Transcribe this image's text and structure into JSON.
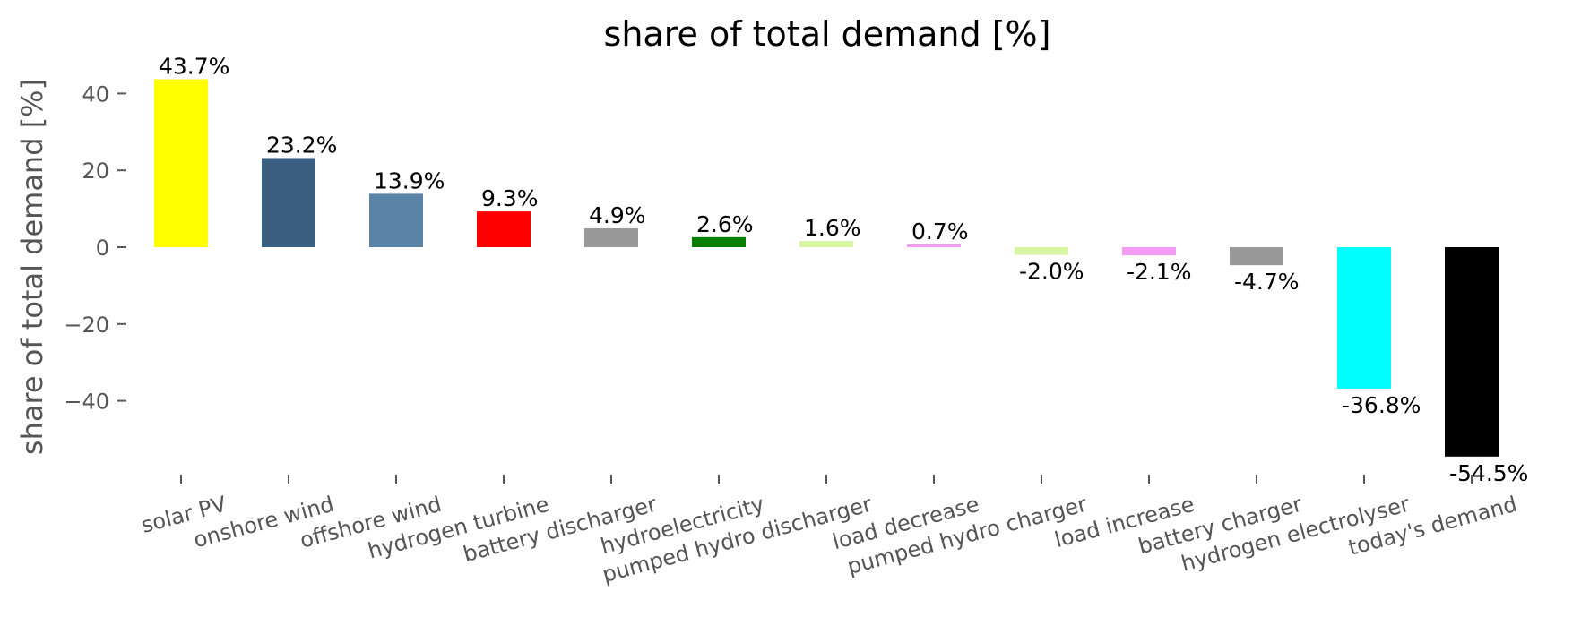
{
  "chart_data": {
    "type": "bar",
    "title": "share of total demand [%]",
    "ylabel": "share of total demand [%]",
    "xlabel": "",
    "ylim": [
      -60,
      46
    ],
    "yticks": [
      -40,
      -20,
      0,
      20,
      40
    ],
    "grid": false,
    "legend": "none",
    "categories": [
      "solar PV",
      "onshore wind",
      "offshore wind",
      "hydrogen turbine",
      "battery discharger",
      "hydroelectricity",
      "pumped hydro discharger",
      "load decrease",
      "pumped hydro charger",
      "load increase",
      "battery charger",
      "hydrogen electrolyser",
      "today's demand"
    ],
    "values": [
      43.7,
      23.2,
      13.9,
      9.3,
      4.9,
      2.6,
      1.6,
      0.7,
      -2.0,
      -2.1,
      -4.7,
      -36.8,
      -54.5
    ],
    "data_labels": [
      "43.7%",
      "23.2%",
      "13.9%",
      "9.3%",
      "4.9%",
      "2.6%",
      "1.6%",
      "0.7%",
      "-2.0%",
      "-2.1%",
      "-4.7%",
      "-36.8%",
      "-54.5%"
    ],
    "colors": [
      "#ffff00",
      "#3b5f80",
      "#5b83a5",
      "#ff0000",
      "#999999",
      "#007f00",
      "#d8f5a2",
      "#f59af5",
      "#d8f5a2",
      "#f59af5",
      "#999999",
      "#00ffff",
      "#000000"
    ]
  }
}
